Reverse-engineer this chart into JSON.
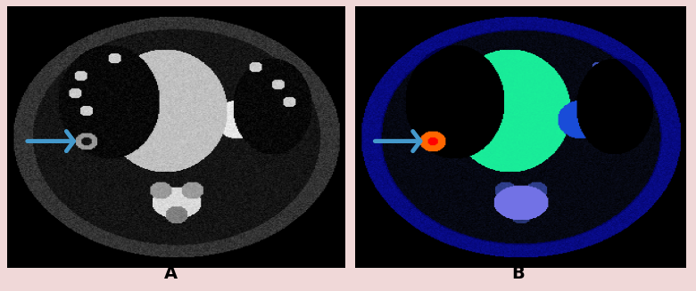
{
  "fig_width": 7.8,
  "fig_height": 3.27,
  "dpi": 100,
  "background_color": "#f0d8d8",
  "label_A": "A",
  "label_B": "B",
  "label_fontsize": 14,
  "label_color": "#000000",
  "label_fontweight": "bold",
  "arrow_color": "#4499cc",
  "size": 300
}
